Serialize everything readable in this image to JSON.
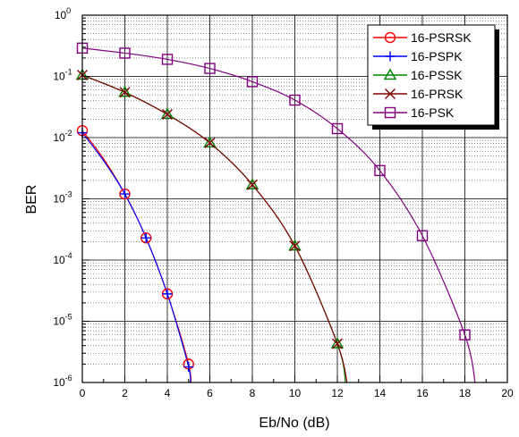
{
  "chart_data": {
    "type": "line",
    "xlabel": "Eb/No (dB)",
    "ylabel": "BER",
    "xlim": [
      0,
      20
    ],
    "ylim": [
      1e-06,
      1
    ],
    "yscale": "log",
    "grid": true,
    "legend_position": "top-right",
    "x_ticks": [
      "0",
      "2",
      "4",
      "6",
      "8",
      "10",
      "12",
      "14",
      "16",
      "18",
      "20"
    ],
    "y_ticks": [
      {
        "base": "10",
        "exp": "0"
      },
      {
        "base": "10",
        "exp": "-1"
      },
      {
        "base": "10",
        "exp": "-2"
      },
      {
        "base": "10",
        "exp": "-3"
      },
      {
        "base": "10",
        "exp": "-4"
      },
      {
        "base": "10",
        "exp": "-5"
      },
      {
        "base": "10",
        "exp": "-6"
      }
    ],
    "series": [
      {
        "name": "16-PSRSK",
        "color": "#ff0000",
        "marker": "circle",
        "x": [
          0,
          2,
          3,
          4,
          5
        ],
        "y": [
          0.013,
          0.0012,
          0.00023,
          2.8e-05,
          2e-06
        ],
        "curve_x": [
          0,
          1,
          2,
          3,
          4,
          5,
          5.1
        ],
        "curve_y": [
          0.013,
          0.0045,
          0.0012,
          0.00023,
          2.8e-05,
          2e-06,
          7.5e-07
        ]
      },
      {
        "name": "16-PSPK",
        "color": "#0000ff",
        "marker": "plus",
        "x": [
          0,
          2,
          3,
          4,
          5
        ],
        "y": [
          0.012,
          0.0012,
          0.00023,
          2.8e-05,
          1.8e-06
        ],
        "curve_x": [
          0,
          1,
          2,
          3,
          4,
          5,
          5.05
        ],
        "curve_y": [
          0.012,
          0.0042,
          0.0012,
          0.00023,
          2.8e-05,
          1.8e-06,
          9e-07
        ]
      },
      {
        "name": "16-PSSK",
        "color": "#008000",
        "marker": "triangle",
        "x": [
          0,
          2,
          4,
          6,
          8,
          10,
          12
        ],
        "y": [
          0.105,
          0.055,
          0.024,
          0.0082,
          0.0017,
          0.00017,
          4.3e-06
        ],
        "curve_x": [
          0,
          2,
          4,
          6,
          8,
          10,
          12,
          12.4
        ],
        "curve_y": [
          0.105,
          0.055,
          0.024,
          0.0082,
          0.0017,
          0.00017,
          4.3e-06,
          9e-07
        ]
      },
      {
        "name": "16-PRSK",
        "color": "#800000",
        "marker": "x",
        "x": [
          0,
          2,
          4,
          6,
          8,
          10,
          12
        ],
        "y": [
          0.105,
          0.055,
          0.024,
          0.0082,
          0.0017,
          0.00017,
          4.3e-06
        ],
        "curve_x": [
          0,
          2,
          4,
          6,
          8,
          10,
          12,
          12.5
        ],
        "curve_y": [
          0.105,
          0.055,
          0.024,
          0.0082,
          0.0017,
          0.00017,
          4.3e-06,
          8e-07
        ]
      },
      {
        "name": "16-PSK",
        "color": "#800080",
        "marker": "square",
        "x": [
          0,
          2,
          4,
          6,
          8,
          10,
          12,
          14,
          16,
          18
        ],
        "y": [
          0.29,
          0.24,
          0.19,
          0.135,
          0.082,
          0.041,
          0.014,
          0.0029,
          0.00025,
          6e-06
        ],
        "curve_x": [
          0,
          2,
          4,
          6,
          8,
          10,
          12,
          14,
          16,
          18,
          18.5
        ],
        "curve_y": [
          0.29,
          0.24,
          0.19,
          0.135,
          0.082,
          0.041,
          0.014,
          0.0029,
          0.00025,
          6e-06,
          9e-07
        ]
      }
    ]
  }
}
